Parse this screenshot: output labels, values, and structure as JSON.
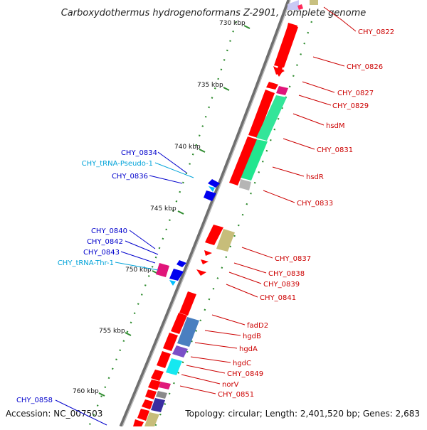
{
  "title": "Carboxydothermus hydrogenoformans Z-2901, complete genome",
  "accession": "Accession: NC_007503",
  "topology": "Topology: circular; Length: 2,401,520 bp; Genes: 2,683",
  "colors": {
    "backbone": "#8c8c8c",
    "cds": "#ff0000",
    "gene_label_right": "#cc0000",
    "gene_label_left": "#0000cc",
    "trna_label": "#00a3d9",
    "tick_dots": "#2e8b2e"
  },
  "ticks": [
    {
      "label": "730 kbp"
    },
    {
      "label": "735 kbp"
    },
    {
      "label": "740 kbp"
    },
    {
      "label": "745 kbp"
    },
    {
      "label": "750 kbp"
    },
    {
      "label": "755 kbp"
    },
    {
      "label": "760 kbp"
    }
  ],
  "labels_right": [
    {
      "text": "CHY_0822"
    },
    {
      "text": "CHY_0826"
    },
    {
      "text": "CHY_0827"
    },
    {
      "text": "CHY_0829"
    },
    {
      "text": "hsdM"
    },
    {
      "text": "CHY_0831"
    },
    {
      "text": "hsdR"
    },
    {
      "text": "CHY_0833"
    },
    {
      "text": "CHY_0837"
    },
    {
      "text": "CHY_0838"
    },
    {
      "text": "CHY_0839"
    },
    {
      "text": "CHY_0841"
    },
    {
      "text": "fadD2"
    },
    {
      "text": "hgdB"
    },
    {
      "text": "hgdA"
    },
    {
      "text": "hgdC"
    },
    {
      "text": "CHY_0849"
    },
    {
      "text": "norV"
    },
    {
      "text": "CHY_0851"
    }
  ],
  "labels_left": [
    {
      "text": "CHY_0834",
      "kind": "gene"
    },
    {
      "text": "CHY_tRNA-Pseudo-1",
      "kind": "trna"
    },
    {
      "text": "CHY_0836",
      "kind": "gene"
    },
    {
      "text": "CHY_0840",
      "kind": "gene"
    },
    {
      "text": "CHY_0842",
      "kind": "gene"
    },
    {
      "text": "CHY_0843",
      "kind": "gene"
    },
    {
      "text": "CHY_tRNA-Thr-1",
      "kind": "trna"
    },
    {
      "text": "CHY_0858",
      "kind": "gene"
    }
  ]
}
